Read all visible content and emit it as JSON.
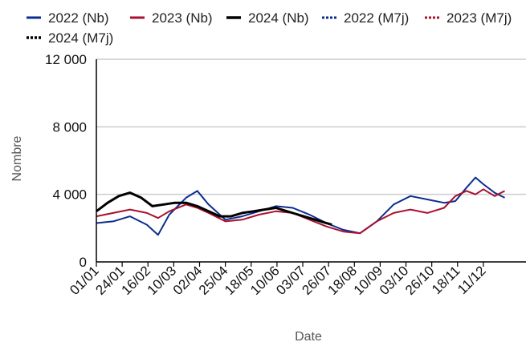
{
  "chart_data": {
    "type": "line",
    "title": "",
    "xlabel": "Date",
    "ylabel": "Nombre",
    "ylim": [
      0,
      12000
    ],
    "yticks": [
      "0",
      "4 000",
      "8 000",
      "12 000"
    ],
    "ytick_values": [
      0,
      4000,
      8000,
      12000
    ],
    "xlim": [
      "01/01",
      "31/12"
    ],
    "xticks": [
      "01/01",
      "24/01",
      "16/02",
      "10/03",
      "02/04",
      "25/04",
      "18/05",
      "10/06",
      "03/07",
      "26/07",
      "18/08",
      "10/09",
      "03/10",
      "26/10",
      "18/11",
      "11/12"
    ],
    "xtick_days": [
      0,
      23,
      46,
      69,
      92,
      115,
      138,
      161,
      184,
      207,
      230,
      253,
      276,
      299,
      322,
      345
    ],
    "grid": "horizontal",
    "legend_position": "top",
    "series": [
      {
        "name": "2022 (Nb)",
        "color": "#0b2d8f",
        "style": "solid",
        "points": [
          [
            0,
            2300
          ],
          [
            15,
            2400
          ],
          [
            30,
            2700
          ],
          [
            45,
            2200
          ],
          [
            55,
            1600
          ],
          [
            65,
            2800
          ],
          [
            80,
            3800
          ],
          [
            90,
            4200
          ],
          [
            100,
            3400
          ],
          [
            115,
            2500
          ],
          [
            130,
            2700
          ],
          [
            145,
            3000
          ],
          [
            160,
            3300
          ],
          [
            175,
            3200
          ],
          [
            190,
            2800
          ],
          [
            205,
            2300
          ],
          [
            220,
            1900
          ],
          [
            235,
            1700
          ],
          [
            250,
            2400
          ],
          [
            265,
            3400
          ],
          [
            280,
            3900
          ],
          [
            295,
            3700
          ],
          [
            310,
            3500
          ],
          [
            320,
            3600
          ],
          [
            330,
            4400
          ],
          [
            338,
            5000
          ],
          [
            345,
            4600
          ],
          [
            355,
            4100
          ],
          [
            364,
            3800
          ]
        ]
      },
      {
        "name": "2023 (Nb)",
        "color": "#a8102e",
        "style": "solid",
        "points": [
          [
            0,
            2700
          ],
          [
            15,
            2900
          ],
          [
            30,
            3100
          ],
          [
            45,
            2900
          ],
          [
            55,
            2600
          ],
          [
            65,
            3000
          ],
          [
            80,
            3400
          ],
          [
            90,
            3200
          ],
          [
            100,
            2900
          ],
          [
            115,
            2400
          ],
          [
            130,
            2500
          ],
          [
            145,
            2800
          ],
          [
            160,
            3000
          ],
          [
            175,
            2900
          ],
          [
            190,
            2500
          ],
          [
            205,
            2100
          ],
          [
            220,
            1800
          ],
          [
            235,
            1700
          ],
          [
            250,
            2400
          ],
          [
            265,
            2900
          ],
          [
            280,
            3100
          ],
          [
            295,
            2900
          ],
          [
            310,
            3200
          ],
          [
            320,
            3900
          ],
          [
            330,
            4200
          ],
          [
            338,
            4000
          ],
          [
            345,
            4300
          ],
          [
            355,
            3900
          ],
          [
            364,
            4200
          ]
        ]
      },
      {
        "name": "2024 (Nb)",
        "color": "#000000",
        "style": "solid",
        "points": [
          [
            0,
            3000
          ],
          [
            10,
            3500
          ],
          [
            20,
            3900
          ],
          [
            30,
            4100
          ],
          [
            40,
            3800
          ],
          [
            50,
            3300
          ],
          [
            60,
            3400
          ],
          [
            70,
            3500
          ],
          [
            80,
            3500
          ],
          [
            90,
            3300
          ],
          [
            100,
            3000
          ],
          [
            110,
            2700
          ],
          [
            120,
            2700
          ],
          [
            130,
            2900
          ],
          [
            140,
            3000
          ],
          [
            150,
            3100
          ],
          [
            160,
            3200
          ],
          [
            170,
            3000
          ],
          [
            180,
            2800
          ],
          [
            190,
            2600
          ],
          [
            200,
            2400
          ],
          [
            210,
            2200
          ]
        ]
      },
      {
        "name": "2022 (M7j)",
        "color": "#0b2d8f",
        "style": "dotted",
        "points": []
      },
      {
        "name": "2023 (M7j)",
        "color": "#a8102e",
        "style": "dotted",
        "points": []
      },
      {
        "name": "2024 (M7j)",
        "color": "#000000",
        "style": "dotted",
        "points": []
      }
    ]
  }
}
